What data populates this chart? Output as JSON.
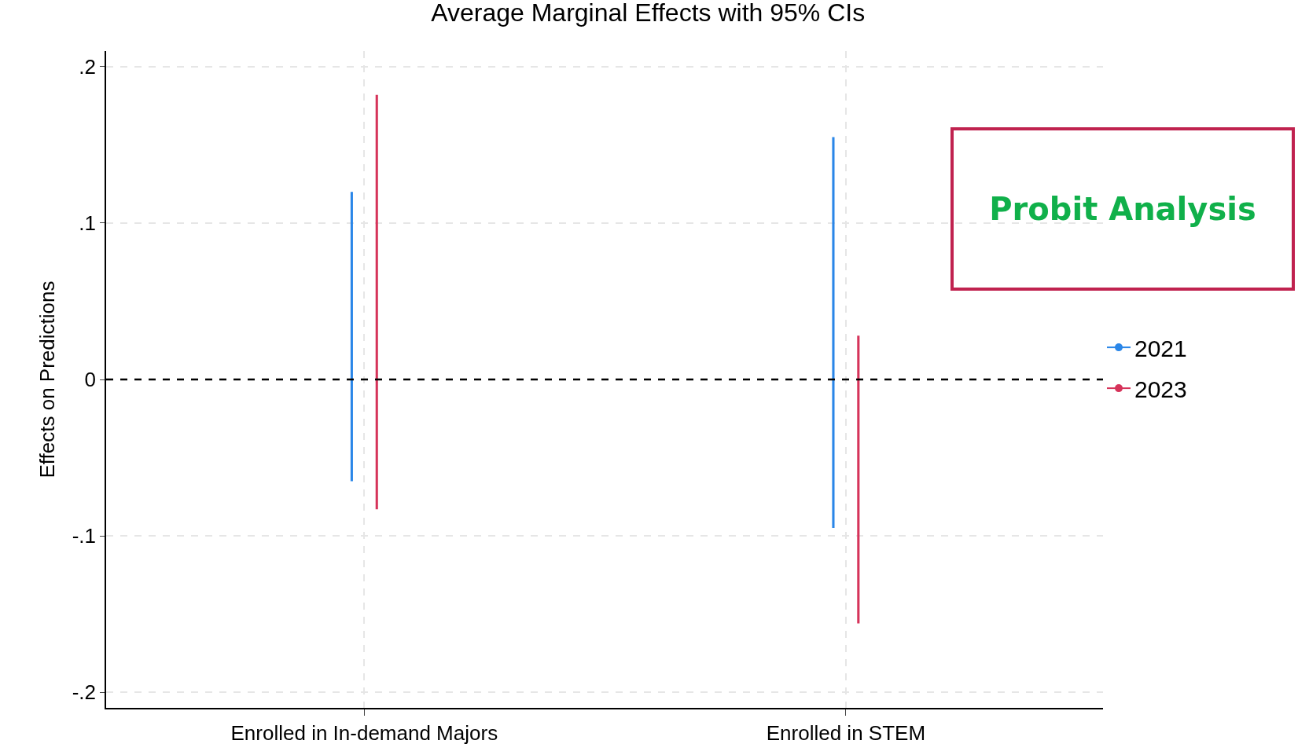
{
  "chart_data": {
    "type": "bar",
    "title": "Average Marginal Effects with 95% CIs",
    "ylabel": "Effects on Predictions",
    "categories": [
      "Enrolled in In-demand Majors",
      "Enrolled in STEM"
    ],
    "series": [
      {
        "name": "2021",
        "color": "#2a86e8",
        "base": [
          -0.065,
          -0.095
        ],
        "values": [
          0.185,
          0.25
        ]
      },
      {
        "name": "2023",
        "color": "#d6335a",
        "base": [
          -0.083,
          -0.156
        ],
        "values": [
          0.265,
          0.184
        ]
      }
    ],
    "ylim": [
      -0.21,
      0.21
    ],
    "yticks": [
      {
        "value": -0.2,
        "label": "-.2"
      },
      {
        "value": -0.1,
        "label": "-.1"
      },
      0,
      {
        "value": 0.1,
        "label": ".1"
      },
      {
        "value": 0.2,
        "label": ".2"
      }
    ],
    "ref_lines": [
      {
        "axis": "y",
        "value": 0,
        "color": "#000000",
        "line_style": "dashed"
      }
    ],
    "annotations": [
      "Probit Analysis"
    ],
    "grid": true,
    "legend": "right"
  }
}
